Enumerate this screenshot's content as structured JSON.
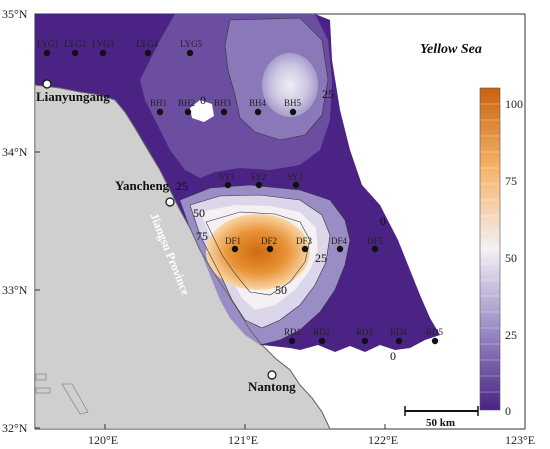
{
  "map": {
    "sea_label": "Yellow Sea",
    "province_label": "Jiangsu Province",
    "lat_ticks": [
      "35°N",
      "34°N",
      "33°N",
      "32°N"
    ],
    "lon_ticks": [
      "120°E",
      "121°E",
      "122°E",
      "123°E"
    ],
    "cities": [
      {
        "name": "Lianyungang"
      },
      {
        "name": "Yancheng"
      },
      {
        "name": "Nantong"
      }
    ],
    "stations": [
      "LYG1",
      "LYG2",
      "LYG3",
      "LYG4",
      "LYG5",
      "BH1",
      "BH2",
      "BH3",
      "BH4",
      "BH5",
      "SY1",
      "SY2",
      "SY3",
      "DF1",
      "DF2",
      "DF3",
      "DF4",
      "DF5",
      "RD1",
      "RD2",
      "RD3",
      "RD4",
      "RD5"
    ],
    "contour_labels": [
      "25",
      "0",
      "25",
      "50",
      "75",
      "25",
      "50",
      "0",
      "0"
    ],
    "colorbar": {
      "ticks": [
        "100",
        "75",
        "50",
        "25",
        "0"
      ],
      "low_color": "#4a2384",
      "mid_color": "#f4f0f4",
      "high_color": "#c8620e"
    },
    "scale_bar": {
      "label": "50 km"
    }
  }
}
